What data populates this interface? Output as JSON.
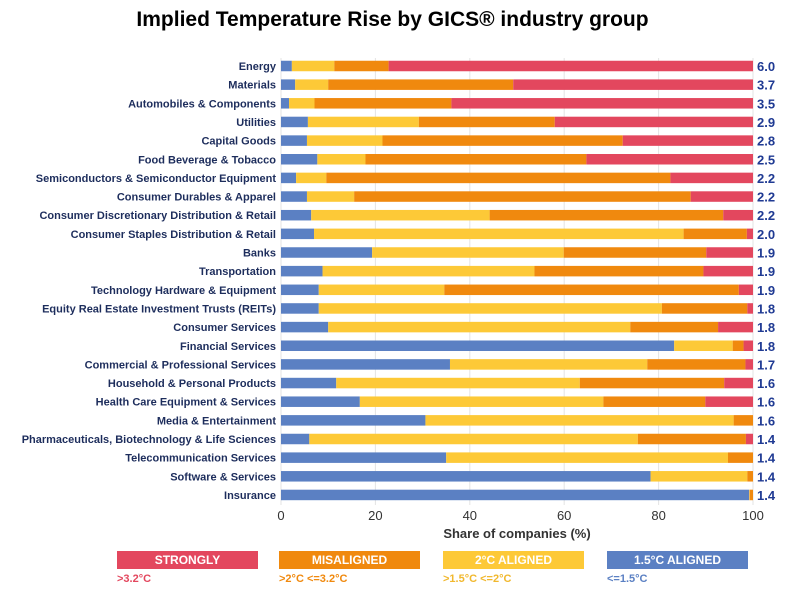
{
  "chart_data": {
    "type": "bar",
    "orientation": "horizontal",
    "stacked": true,
    "title": "Implied Temperature Rise by GICS® industry group",
    "xlabel": "Share of companies (%)",
    "ylabel": "",
    "xlim": [
      0,
      100
    ],
    "xticks": [
      "0",
      "20",
      "40",
      "60",
      "80",
      "100"
    ],
    "categories": [
      "Energy",
      "Materials",
      "Automobiles & Components",
      "Utilities",
      "Capital Goods",
      "Food Beverage & Tobacco",
      "Semiconductors & Semiconductor Equipment",
      "Consumer Durables & Apparel",
      "Consumer Discretionary Distribution & Retail",
      "Consumer Staples Distribution & Retail",
      "Banks",
      "Transportation",
      "Technology Hardware & Equipment",
      "Equity Real Estate Investment Trusts (REITs)",
      "Consumer Services",
      "Financial Services",
      "Commercial & Professional Services",
      "Household & Personal Products",
      "Health Care Equipment & Services",
      "Media & Entertainment",
      "Pharmaceuticals, Biotechnology & Life Sciences",
      "Telecommunication Services",
      "Software & Services",
      "Insurance"
    ],
    "temperatures": [
      "6.0",
      "3.7",
      "3.5",
      "2.9",
      "2.8",
      "2.5",
      "2.2",
      "2.2",
      "2.2",
      "2.0",
      "1.9",
      "1.9",
      "1.9",
      "1.8",
      "1.8",
      "1.8",
      "1.7",
      "1.6",
      "1.6",
      "1.6",
      "1.4",
      "1.4",
      "1.4",
      "1.4"
    ],
    "series": [
      {
        "name": "1.5°C ALIGNED",
        "range": "<=1.5°C",
        "color": "#5b80c3",
        "values": [
          2.3,
          3.0,
          1.7,
          5.7,
          5.5,
          7.7,
          3.2,
          5.5,
          6.4,
          7.0,
          19.3,
          8.8,
          8.0,
          8.0,
          10.0,
          83.3,
          35.8,
          11.7,
          16.7,
          30.6,
          6.0,
          35.0,
          78.3,
          99.2
        ]
      },
      {
        "name": "2°C ALIGNED",
        "range": ">1.5°C <=2°C",
        "color": "#fdc937",
        "values": [
          9.0,
          7.0,
          5.4,
          23.5,
          16.0,
          10.2,
          6.4,
          10.0,
          37.8,
          78.3,
          40.6,
          44.9,
          26.6,
          72.7,
          64.0,
          12.4,
          41.8,
          51.6,
          51.6,
          65.3,
          69.6,
          59.7,
          20.5,
          0.1
        ]
      },
      {
        "name": "MISALIGNED",
        "range": ">2°C <=3.2°C",
        "color": "#f0890e",
        "values": [
          11.5,
          39.2,
          29.0,
          28.8,
          50.9,
          46.8,
          72.9,
          71.3,
          49.5,
          13.4,
          30.2,
          35.8,
          62.4,
          18.1,
          18.6,
          2.3,
          20.8,
          30.6,
          21.6,
          4.1,
          22.9,
          5.3,
          1.2,
          0.7
        ]
      },
      {
        "name": "STRONGLY MISALIGNED",
        "range": ">3.2°C",
        "color": "#e3475e",
        "values": [
          77.2,
          50.8,
          63.9,
          42.0,
          27.6,
          35.3,
          17.5,
          13.2,
          6.3,
          1.3,
          9.9,
          10.5,
          3.0,
          1.2,
          7.4,
          2.0,
          1.6,
          6.1,
          10.1,
          0.0,
          1.5,
          0.0,
          0.0,
          0.0
        ]
      }
    ],
    "legend": {
      "position": "bottom",
      "items": [
        {
          "label": "STRONGLY MISALIGNED",
          "sub": ">3.2°C",
          "color": "#e3475e",
          "sub_color": "#e3475e"
        },
        {
          "label": "MISALIGNED",
          "sub": ">2°C <=3.2°C",
          "color": "#f0890e",
          "sub_color": "#f0890e"
        },
        {
          "label": "2°C ALIGNED",
          "sub": ">1.5°C <=2°C",
          "color": "#fdc937",
          "sub_color": "#f1b82e"
        },
        {
          "label": "1.5°C ALIGNED",
          "sub": "<=1.5°C",
          "color": "#5b80c3",
          "sub_color": "#5b80c3"
        }
      ]
    },
    "grid": true,
    "label_color": "#1d2d5c",
    "value_color": "#1f3a93"
  }
}
